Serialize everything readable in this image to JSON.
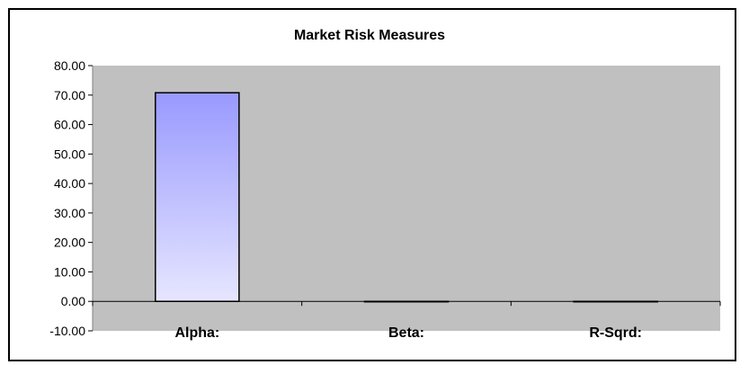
{
  "chart_data": {
    "type": "bar",
    "title": "Market Risk Measures",
    "categories": [
      "Alpha:",
      "Beta:",
      "R-Sqrd:"
    ],
    "values": [
      70.8,
      0.0,
      0.0
    ],
    "ylim": [
      -10,
      80
    ],
    "y_ticks": [
      "80.00",
      "70.00",
      "60.00",
      "50.00",
      "40.00",
      "30.00",
      "20.00",
      "10.00",
      "0.00",
      "-10.00"
    ],
    "xlabel": "",
    "ylabel": "",
    "grid": false,
    "legend": "none",
    "colors": {
      "plot_area": "#c0c0c0",
      "bar_top": "#9999ff",
      "bar_bottom": "#e6e6ff",
      "bar_border": "#000000"
    }
  }
}
